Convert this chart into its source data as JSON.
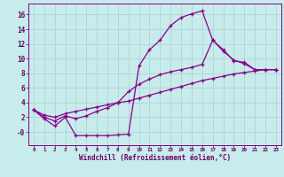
{
  "xlabel": "Windchill (Refroidissement éolien,°C)",
  "background_color": "#c8ecec",
  "grid_color": "#b0d8d8",
  "line_color": "#880088",
  "text_color": "#660066",
  "x_ticks": [
    0,
    1,
    2,
    3,
    4,
    5,
    6,
    7,
    8,
    9,
    10,
    11,
    12,
    13,
    14,
    15,
    16,
    17,
    18,
    19,
    20,
    21,
    22,
    23
  ],
  "y_ticks": [
    0,
    2,
    4,
    6,
    8,
    10,
    12,
    14,
    16
  ],
  "y_tick_labels": [
    "-0",
    "2",
    "4",
    "6",
    "8",
    "10",
    "12",
    "14",
    "16"
  ],
  "ylim": [
    -1.8,
    17.5
  ],
  "xlim": [
    -0.5,
    23.5
  ],
  "curve1_x": [
    0,
    1,
    2,
    3,
    4,
    5,
    6,
    7,
    8,
    9,
    10,
    11,
    12,
    13,
    14,
    15,
    16,
    17,
    18,
    19,
    20,
    21,
    22,
    23
  ],
  "curve1_y": [
    3.0,
    1.8,
    0.8,
    2.0,
    -0.5,
    -0.5,
    -0.5,
    -0.5,
    -0.4,
    -0.3,
    9.0,
    11.2,
    12.5,
    14.5,
    15.6,
    16.1,
    16.5,
    12.5,
    11.2,
    9.7,
    9.5,
    8.5,
    8.5,
    8.5
  ],
  "curve2_x": [
    0,
    1,
    2,
    3,
    4,
    5,
    6,
    7,
    8,
    9,
    10,
    11,
    12,
    13,
    14,
    15,
    16,
    17,
    18,
    19,
    20,
    21,
    22,
    23
  ],
  "curve2_y": [
    3.0,
    2.0,
    1.5,
    2.2,
    1.8,
    2.2,
    2.8,
    3.3,
    4.0,
    5.5,
    6.5,
    7.2,
    7.8,
    8.2,
    8.5,
    8.8,
    9.2,
    12.5,
    11.0,
    9.8,
    9.3,
    8.5,
    8.5,
    8.5
  ],
  "curve3_x": [
    0,
    1,
    2,
    3,
    4,
    5,
    6,
    7,
    8,
    9,
    10,
    11,
    12,
    13,
    14,
    15,
    16,
    17,
    18,
    19,
    20,
    21,
    22,
    23
  ],
  "curve3_y": [
    3.0,
    2.3,
    2.0,
    2.5,
    2.8,
    3.1,
    3.4,
    3.7,
    4.0,
    4.2,
    4.6,
    5.0,
    5.4,
    5.8,
    6.2,
    6.6,
    7.0,
    7.3,
    7.6,
    7.9,
    8.1,
    8.3,
    8.5,
    8.5
  ]
}
